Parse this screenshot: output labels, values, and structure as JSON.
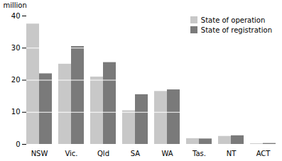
{
  "chart_data": {
    "type": "bar",
    "categories": [
      "NSW",
      "Vic.",
      "Qld",
      "SA",
      "WA",
      "Tas.",
      "NT",
      "ACT"
    ],
    "series": [
      {
        "name": "State of operation",
        "color": "#c8c8c8",
        "values": [
          37.5,
          25.0,
          21.0,
          10.5,
          16.5,
          1.8,
          2.5,
          0.2
        ]
      },
      {
        "name": "State of registration",
        "color": "#7a7a7a",
        "values": [
          22.0,
          30.5,
          25.5,
          15.5,
          17.0,
          1.7,
          2.7,
          0.3
        ]
      }
    ],
    "ylabel": "million",
    "ylim": [
      0,
      40
    ],
    "yticks": [
      0,
      10,
      20,
      30,
      40
    ],
    "grid": true,
    "legend": "upper-right"
  }
}
